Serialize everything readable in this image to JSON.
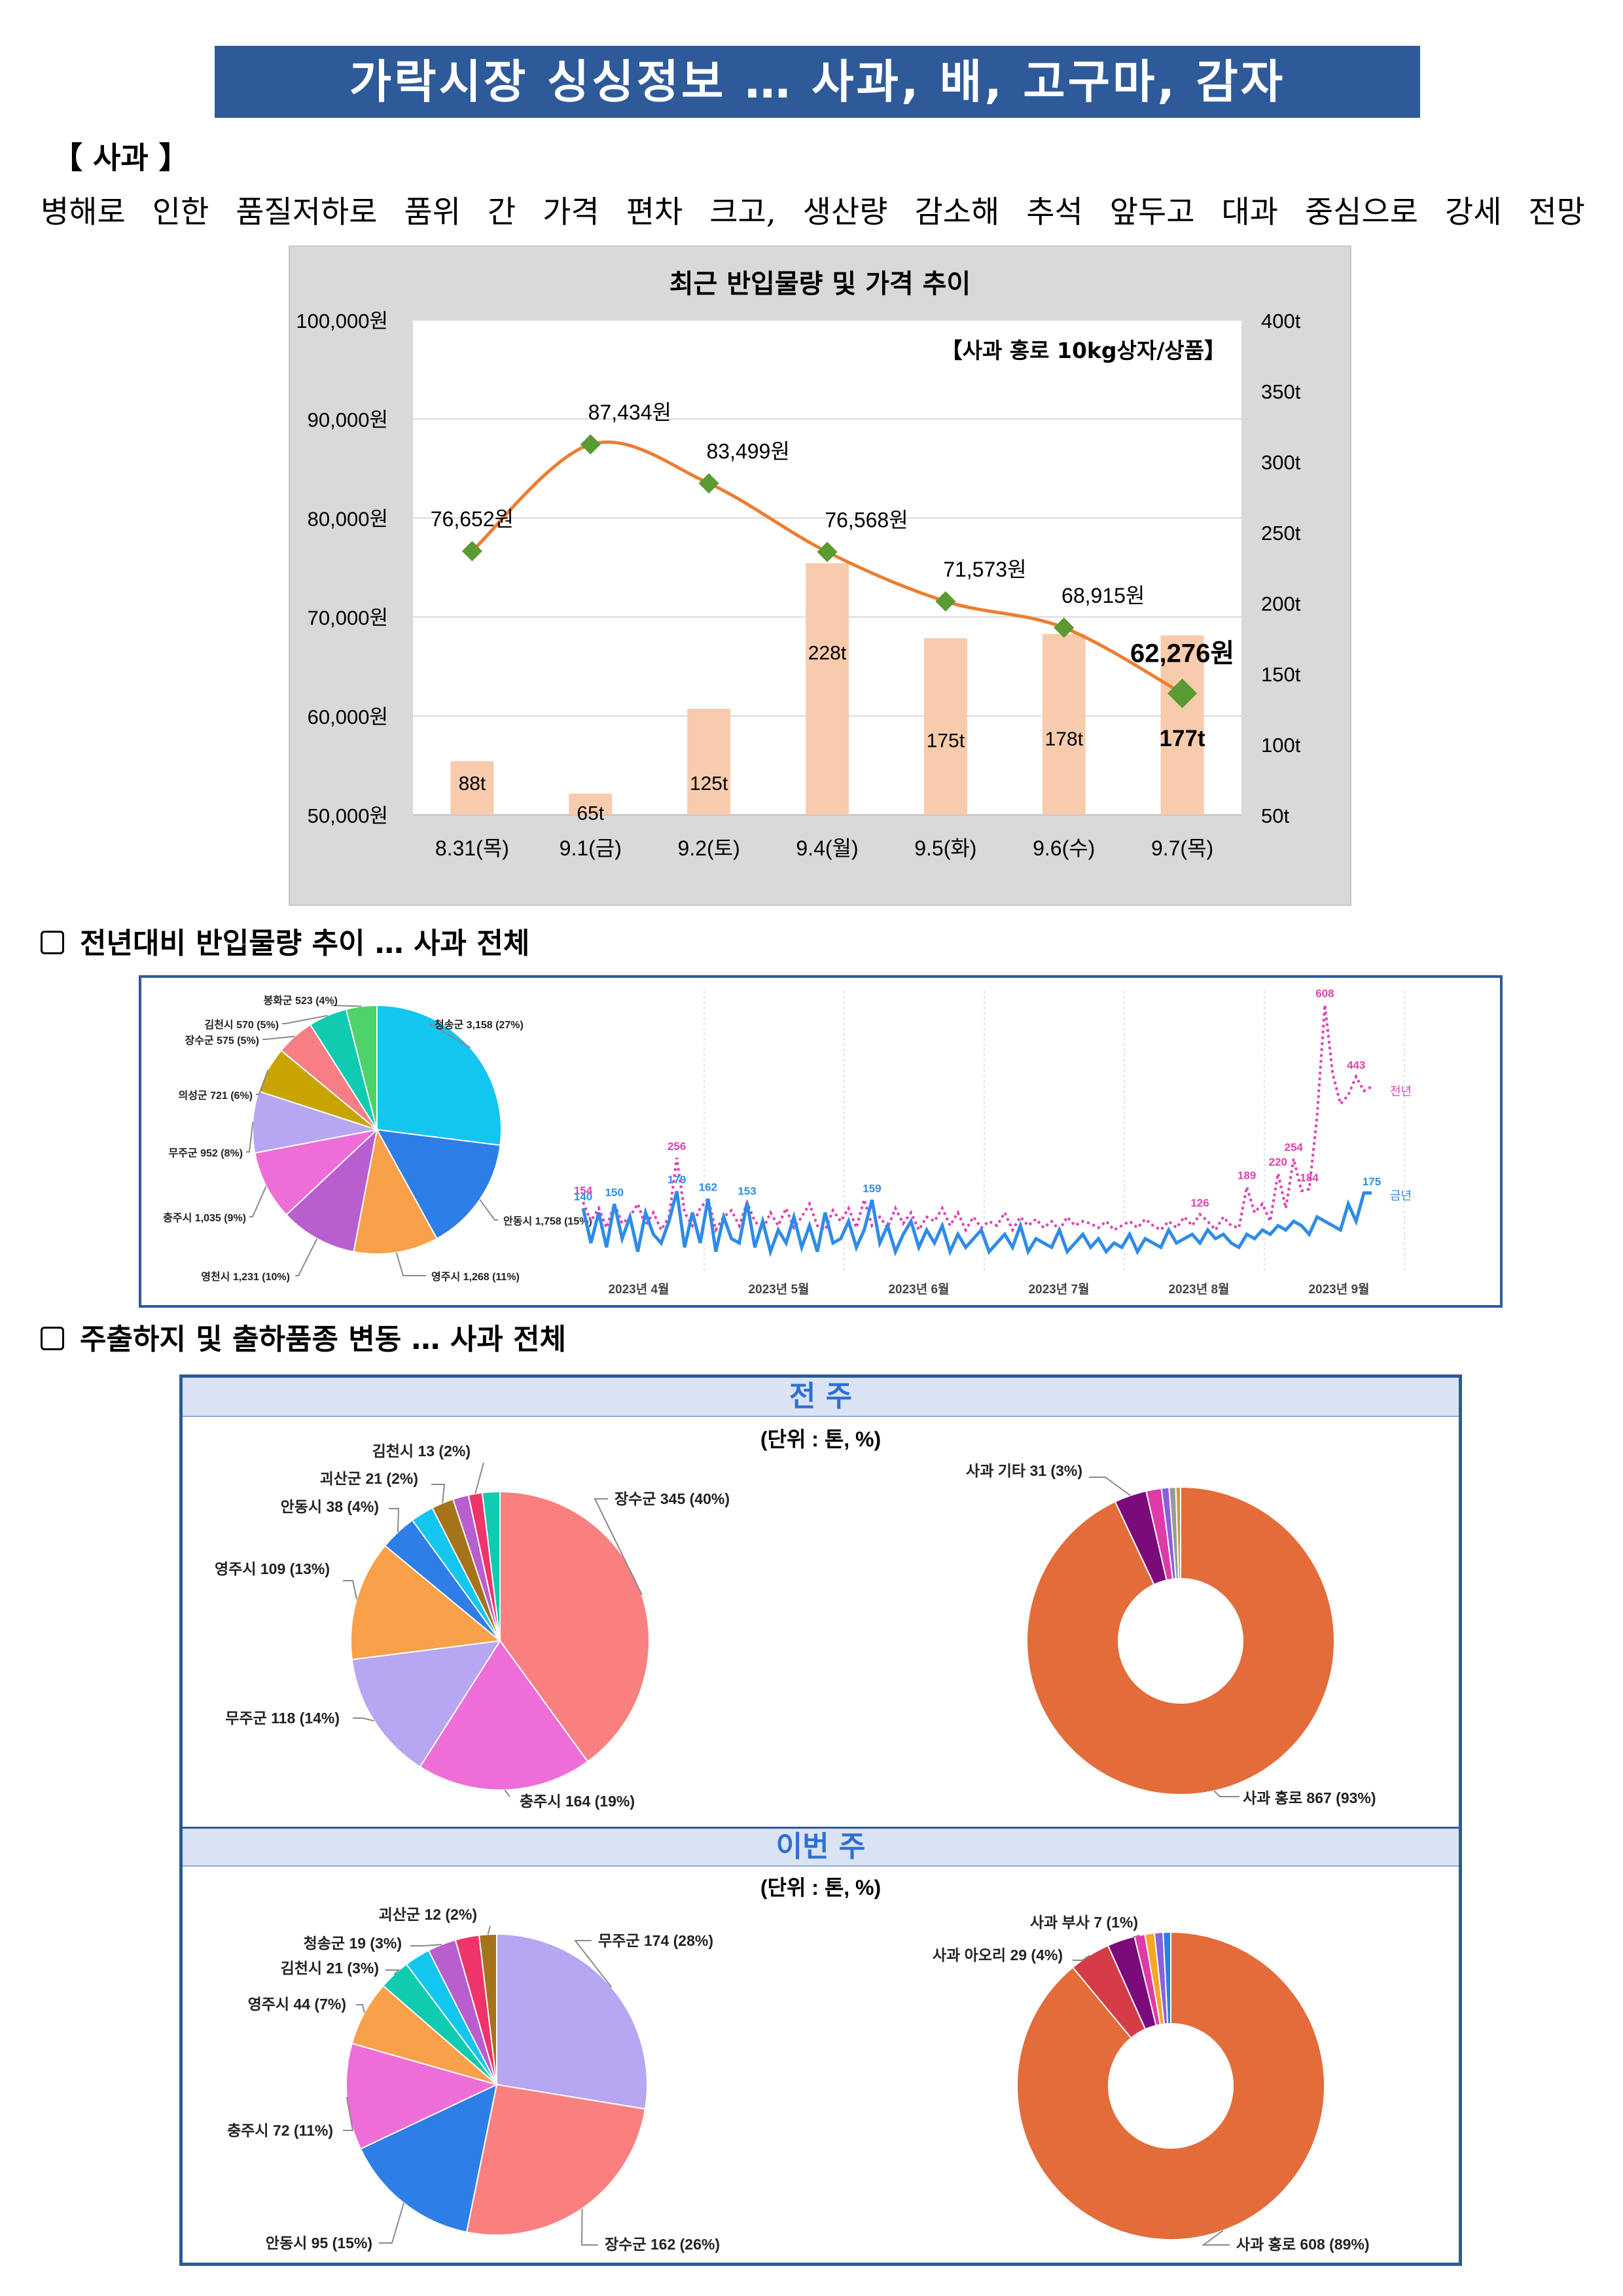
{
  "title": "가락시장 싱싱정보 … 사과, 배, 고구마, 감자",
  "section": "【 사과 】",
  "summary": "병해로 인한 품질저하로 품위 간 가격 편차 크고, 생산량 감소해 추석 앞두고 대과 중심으로 강세 전망",
  "chart_data": [
    {
      "type": "bar+line",
      "title": "최근 반입물량 및 가격 추이",
      "annotation": "【사과 홍로 10kg상자/상품】",
      "categories": [
        "8.31(목)",
        "9.1(금)",
        "9.2(토)",
        "9.4(월)",
        "9.5(화)",
        "9.6(수)",
        "9.7(목)"
      ],
      "series": [
        {
          "values": [
            88,
            65,
            125,
            228,
            175,
            178,
            177
          ],
          "labels": [
            "88t",
            "65t",
            "125t",
            "228t",
            "175t",
            "178t",
            "177t"
          ],
          "color": "#f8cbad"
        },
        {
          "values": [
            76652,
            87434,
            83499,
            76568,
            71573,
            68915,
            62276
          ],
          "labels": [
            "76,652원",
            "87,434원",
            "83,499원",
            "76,568원",
            "71,573원",
            "68,915원",
            "62,276원"
          ],
          "color": "#ed7d31"
        }
      ],
      "y_left_ticks": [
        "100,000원",
        "90,000원",
        "80,000원",
        "70,000원",
        "60,000원",
        "50,000원"
      ],
      "y_left_range": [
        50000,
        100000
      ],
      "y_right_ticks": [
        "400t",
        "350t",
        "300t",
        "250t",
        "200t",
        "150t",
        "100t",
        "50t"
      ],
      "y_right_range": [
        50,
        400
      ],
      "grid": true
    },
    {
      "type": "pie",
      "slices": [
        {
          "label": "청송군 3,158 (27%)",
          "value": 27,
          "color": "#12c6f0"
        },
        {
          "label": "안동시 1,758 (15%)",
          "value": 15,
          "color": "#2e7ee8"
        },
        {
          "label": "영주시 1,268 (11%)",
          "value": 11,
          "color": "#f8a04a"
        },
        {
          "label": "영천시 1,231 (10%)",
          "value": 10,
          "color": "#b85ecf"
        },
        {
          "label": "충주시 1,035 (9%)",
          "value": 9,
          "color": "#ef6dd6"
        },
        {
          "label": "무주군 952 (8%)",
          "value": 8,
          "color": "#b7a6f2"
        },
        {
          "label": "의성군 721 (6%)",
          "value": 6,
          "color": "#c8a400"
        },
        {
          "label": "장수군 575 (5%)",
          "value": 5,
          "color": "#f77e85"
        },
        {
          "label": "김천시 570 (5%)",
          "value": 5,
          "color": "#10cbb0"
        },
        {
          "label": "봉화군 523 (4%)",
          "value": 4,
          "color": "#4cd36a"
        }
      ]
    },
    {
      "type": "line",
      "x_labels": [
        "2023년 4월",
        "2023년 5월",
        "2023년 6월",
        "2023년 7월",
        "2023년 8월",
        "2023년 9월"
      ],
      "series": [
        {
          "name": "전년",
          "color": "#e040b0",
          "values": [
            154,
            110,
            140,
            95,
            150,
            105,
            120,
            150,
            100,
            130,
            90,
            120,
            256,
            130,
            100,
            140,
            162,
            90,
            120,
            135,
            100,
            153,
            110,
            90,
            130,
            100,
            140,
            95,
            120,
            150,
            100,
            90,
            135,
            110,
            140,
            95,
            160,
            100,
            120,
            95,
            140,
            105,
            130,
            90,
            120,
            110,
            140,
            100,
            130,
            90,
            120,
            95,
            110,
            100,
            130,
            90,
            120,
            100,
            115,
            95,
            110,
            90,
            120,
            100,
            110,
            105,
            95,
            110,
            90,
            100,
            110,
            95,
            115,
            100,
            90,
            110,
            95,
            120,
            100,
            126,
            110,
            90,
            120,
            100,
            95,
            189,
            130,
            150,
            110,
            220,
            140,
            254,
            180,
            184,
            350,
            608,
            450,
            380,
            400,
            443,
            410,
            420
          ],
          "labels": [
            {
              "i": 0,
              "t": "154"
            },
            {
              "i": 12,
              "t": "256"
            },
            {
              "i": 85,
              "t": "189"
            },
            {
              "i": 89,
              "t": "220"
            },
            {
              "i": 91,
              "t": "254"
            },
            {
              "i": 93,
              "t": "184"
            },
            {
              "i": 95,
              "t": "608"
            },
            {
              "i": 99,
              "t": "443"
            },
            {
              "i": 79,
              "t": "126"
            }
          ]
        },
        {
          "name": "금년",
          "color": "#2f8be8",
          "values": [
            140,
            60,
            130,
            50,
            150,
            70,
            120,
            40,
            130,
            80,
            60,
            110,
            179,
            50,
            130,
            60,
            162,
            40,
            120,
            70,
            60,
            153,
            50,
            110,
            40,
            90,
            60,
            120,
            50,
            100,
            40,
            130,
            60,
            70,
            110,
            50,
            90,
            159,
            60,
            100,
            40,
            80,
            110,
            50,
            90,
            60,
            100,
            40,
            80,
            50,
            70,
            90,
            40,
            60,
            80,
            50,
            100,
            40,
            70,
            60,
            50,
            90,
            40,
            60,
            80,
            50,
            70,
            40,
            60,
            50,
            80,
            40,
            70,
            60,
            50,
            90,
            60,
            70,
            80,
            60,
            90,
            70,
            80,
            60,
            50,
            80,
            70,
            90,
            80,
            100,
            90,
            110,
            100,
            80,
            120,
            110,
            100,
            90,
            150,
            110,
            175,
            175
          ],
          "labels": [
            {
              "i": 0,
              "t": "140"
            },
            {
              "i": 4,
              "t": "150"
            },
            {
              "i": 12,
              "t": "179"
            },
            {
              "i": 16,
              "t": "162"
            },
            {
              "i": 21,
              "t": "153"
            },
            {
              "i": 37,
              "t": "159"
            },
            {
              "i": 101,
              "t": "175"
            }
          ]
        }
      ]
    },
    {
      "type": "pie",
      "period": "전 주",
      "unit": "(단위 : 톤, %)",
      "slices": [
        {
          "label": "장수군 345 (40%)",
          "value": 40,
          "color": "#fa8080"
        },
        {
          "label": "충주시 164 (19%)",
          "value": 19,
          "color": "#ef6dd6"
        },
        {
          "label": "무주군 118 (14%)",
          "value": 14,
          "color": "#b7a6f2"
        },
        {
          "label": "영주시 109 (13%)",
          "value": 13,
          "color": "#f8a04a"
        },
        {
          "label": "안동시 38 (4%)",
          "value": 4,
          "color": "#2e7ee8"
        },
        {
          "label": "",
          "value": 2.5,
          "color": "#12c6f0"
        },
        {
          "label": "괴산군 21 (2%)",
          "value": 2.4,
          "color": "#a5731a"
        },
        {
          "label": "",
          "value": 1.7,
          "color": "#b85ecf"
        },
        {
          "label": "김천시 13 (2%)",
          "value": 1.5,
          "color": "#f0346a"
        },
        {
          "label": "",
          "value": 1.9,
          "color": "#10cbb0"
        }
      ]
    },
    {
      "type": "donut",
      "period": "전 주",
      "slices": [
        {
          "label": "사과 홍로 867 (93%)",
          "value": 93,
          "color": "#e36c3a"
        },
        {
          "label": "사과 기타 31 (3%)",
          "value": 3.4,
          "color": "#7b0a7a"
        },
        {
          "label": "",
          "value": 1.6,
          "color": "#e03aa8"
        },
        {
          "label": "",
          "value": 0.8,
          "color": "#8860e0"
        },
        {
          "label": "",
          "value": 0.7,
          "color": "#999999"
        },
        {
          "label": "",
          "value": 0.5,
          "color": "#c89e3c"
        }
      ]
    },
    {
      "type": "pie",
      "period": "이번 주",
      "unit": "(단위 : 톤, %)",
      "slices": [
        {
          "label": "무주군 174 (28%)",
          "value": 28,
          "color": "#b7a6f2"
        },
        {
          "label": "장수군 162 (26%)",
          "value": 26,
          "color": "#fa8080"
        },
        {
          "label": "안동시 95 (15%)",
          "value": 15,
          "color": "#2e7ee8"
        },
        {
          "label": "충주시 72 (11%)",
          "value": 11.6,
          "color": "#ef6dd6"
        },
        {
          "label": "영주시 44 (7%)",
          "value": 7.1,
          "color": "#f8a04a"
        },
        {
          "label": "김천시 21 (3%)",
          "value": 3.4,
          "color": "#10cbb0"
        },
        {
          "label": "",
          "value": 2.8,
          "color": "#12c6f0"
        },
        {
          "label": "청송군 19 (3%)",
          "value": 3.1,
          "color": "#b85ecf"
        },
        {
          "label": "",
          "value": 2.6,
          "color": "#f0346a"
        },
        {
          "label": "괴산군 12 (2%)",
          "value": 1.9,
          "color": "#a5731a"
        }
      ]
    },
    {
      "type": "donut",
      "period": "이번 주",
      "slices": [
        {
          "label": "사과 홍로 608 (89%)",
          "value": 89,
          "color": "#e36c3a"
        },
        {
          "label": "사과 아오리 29 (4%)",
          "value": 4.3,
          "color": "#d63c48"
        },
        {
          "label": "",
          "value": 2.9,
          "color": "#7b0a7a"
        },
        {
          "label": "사과 부사 7 (1%)",
          "value": 1.1,
          "color": "#e03aa8"
        },
        {
          "label": "",
          "value": 1.0,
          "color": "#f5a623"
        },
        {
          "label": "",
          "value": 0.9,
          "color": "#8860e0"
        },
        {
          "label": "",
          "value": 0.8,
          "color": "#2e7ee8"
        }
      ]
    }
  ],
  "heading1": "전년대비 반입물량 추이 … 사과 전체",
  "heading2": "주출하지 및 출하품종 변동 … 사과 전체",
  "week_prev": "전 주",
  "week_this": "이번 주"
}
